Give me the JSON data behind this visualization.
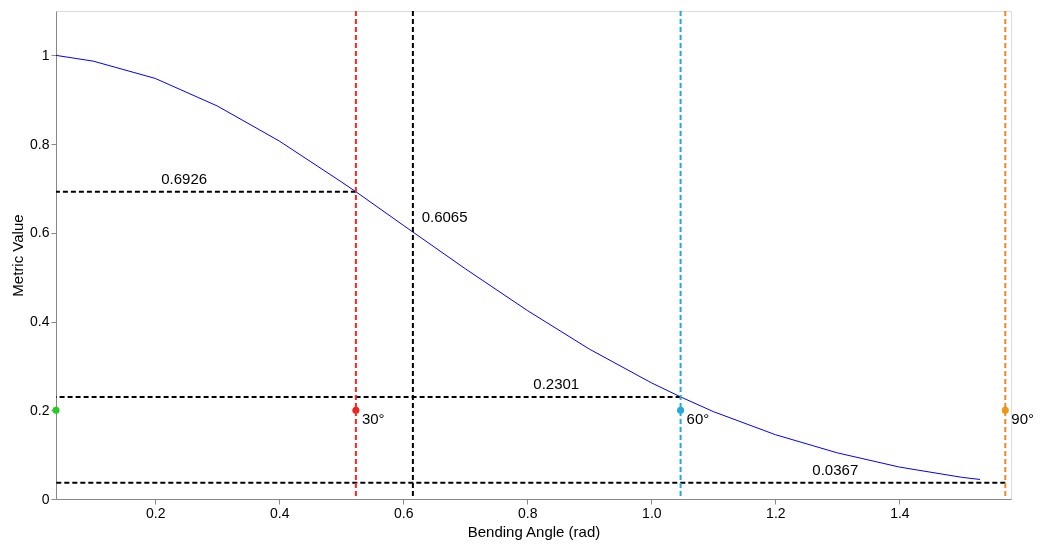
{
  "chart_data": {
    "type": "line",
    "xlabel": "Bending Angle (rad)",
    "ylabel": "Metric Value",
    "xlim": [
      0.04,
      1.58
    ],
    "ylim": [
      0,
      1.1
    ],
    "xticks": [
      0.2,
      0.4,
      0.6,
      0.8,
      {
        "value": 1,
        "label": "1.0"
      },
      1.2,
      1.4
    ],
    "yticks": [
      0,
      0.2,
      0.4,
      0.6,
      0.8,
      1
    ],
    "grid": false,
    "legend": false,
    "line_style": "solid",
    "marker": "none",
    "series": [
      {
        "color": "#0000ff",
        "x": [
          0.04,
          0.1,
          0.2,
          0.3,
          0.4,
          0.5,
          0.5236,
          0.6,
          0.7,
          0.8,
          0.9,
          1.0,
          1.0472,
          1.1,
          1.2,
          1.3,
          1.4,
          1.5,
          1.53
        ],
        "values": [
          1.0,
          0.987,
          0.948,
          0.886,
          0.807,
          0.715,
          0.6926,
          0.617,
          0.519,
          0.425,
          0.338,
          0.262,
          0.2301,
          0.197,
          0.145,
          0.104,
          0.072,
          0.049,
          0.044
        ]
      },
      {
        "type": "line",
        "color": "#000000",
        "line_style": "dashed",
        "x": [
          0.04,
          0.5236
        ],
        "values": [
          0.6926,
          0.6926
        ]
      },
      {
        "type": "line",
        "color": "#000000",
        "line_style": "dashed",
        "x": [
          0.04,
          1.0472
        ],
        "values": [
          0.2301,
          0.2301
        ]
      },
      {
        "type": "line",
        "color": "#000000",
        "line_style": "dashed",
        "x": [
          0.04,
          1.5708
        ],
        "values": [
          0.0367,
          0.0367
        ]
      },
      {
        "type": "scatter",
        "colors": [
          "#22cc22",
          "#ee2222",
          "#22aadd",
          "#ee9911"
        ],
        "x": [
          0.04,
          0.5236,
          1.0472,
          1.5708
        ],
        "values": [
          0.2,
          0.2,
          0.2,
          0.2
        ]
      }
    ],
    "ref_lines": [
      {
        "axis": "x",
        "value": 0.5236,
        "color": "#ff2222",
        "line_style": "dashed"
      },
      {
        "axis": "x",
        "value": 0.6155,
        "color": "#000000",
        "line_style": "dashed"
      },
      {
        "axis": "x",
        "value": 1.0472,
        "color": "#22aadd",
        "line_style": "dashed"
      },
      {
        "axis": "x",
        "value": 1.5708,
        "color": "#ee8822",
        "line_style": "dashed"
      }
    ],
    "annotations": [
      {
        "text": "0.6926",
        "x": 0.2,
        "y": 0.6926
      },
      {
        "text": "0.6065",
        "x": 0.62,
        "y": 0.6065
      },
      {
        "text": "0.2301",
        "x": 0.8,
        "y": 0.2301
      },
      {
        "text": "0.0367",
        "x": 1.25,
        "y": 0.0367
      },
      {
        "text": "30°",
        "x": 0.5236,
        "y": 0.15
      },
      {
        "text": "60°",
        "x": 1.0472,
        "y": 0.15
      },
      {
        "text": "90°",
        "x": 1.5708,
        "y": 0.15
      }
    ]
  }
}
